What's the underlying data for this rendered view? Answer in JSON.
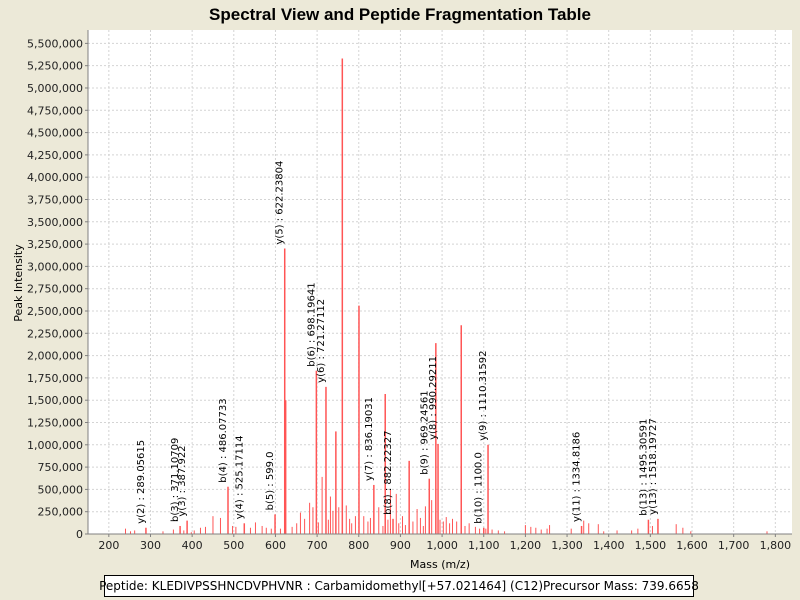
{
  "chart_data": {
    "type": "bar",
    "title": "Spectral View and Peptide Fragmentation Table",
    "xlabel": "Mass (m/z)",
    "ylabel": "Peak Intensity",
    "xlim": [
      150,
      1840
    ],
    "ylim": [
      0,
      5650000
    ],
    "x_ticks": [
      200,
      300,
      400,
      500,
      600,
      700,
      800,
      900,
      1000,
      1100,
      1200,
      1300,
      1400,
      1500,
      1600,
      1700,
      1800
    ],
    "x_tick_labels": [
      "200",
      "300",
      "400",
      "500",
      "600",
      "700",
      "800",
      "900",
      "1,000",
      "1,100",
      "1,200",
      "1,300",
      "1,400",
      "1,500",
      "1,600",
      "1,700",
      "1,800"
    ],
    "y_ticks": [
      0,
      250000,
      500000,
      750000,
      1000000,
      1250000,
      1500000,
      1750000,
      2000000,
      2250000,
      2500000,
      2750000,
      3000000,
      3250000,
      3500000,
      3750000,
      4000000,
      4250000,
      4500000,
      4750000,
      5000000,
      5250000,
      5500000
    ],
    "y_tick_labels": [
      "0",
      "250,000",
      "500,000",
      "750,000",
      "1,000,000",
      "1,250,000",
      "1,500,000",
      "1,750,000",
      "2,000,000",
      "2,250,000",
      "2,500,000",
      "2,750,000",
      "3,000,000",
      "3,250,000",
      "3,500,000",
      "3,750,000",
      "4,000,000",
      "4,250,000",
      "4,500,000",
      "4,750,000",
      "5,000,000",
      "5,250,000",
      "5,500,000"
    ],
    "grid": true,
    "bar_color": "#ff5555",
    "major_peaks": [
      {
        "mz": 289.05615,
        "intensity": 70000
      },
      {
        "mz": 371.10709,
        "intensity": 90000
      },
      {
        "mz": 387.922,
        "intensity": 150000
      },
      {
        "mz": 486.07733,
        "intensity": 530000
      },
      {
        "mz": 525.17114,
        "intensity": 120000
      },
      {
        "mz": 599.0,
        "intensity": 220000
      },
      {
        "mz": 622.23804,
        "intensity": 3200000
      },
      {
        "mz": 624.5,
        "intensity": 1500000
      },
      {
        "mz": 698.19641,
        "intensity": 1830000
      },
      {
        "mz": 721.27112,
        "intensity": 1650000
      },
      {
        "mz": 745,
        "intensity": 1150000
      },
      {
        "mz": 760.5,
        "intensity": 5330000
      },
      {
        "mz": 800.5,
        "intensity": 2560000
      },
      {
        "mz": 836.19031,
        "intensity": 550000
      },
      {
        "mz": 863.5,
        "intensity": 1570000
      },
      {
        "mz": 882.22327,
        "intensity": 170000
      },
      {
        "mz": 921,
        "intensity": 820000
      },
      {
        "mz": 969.24561,
        "intensity": 620000
      },
      {
        "mz": 985,
        "intensity": 2140000
      },
      {
        "mz": 990.29211,
        "intensity": 1010000
      },
      {
        "mz": 1046,
        "intensity": 2340000
      },
      {
        "mz": 1100.0,
        "intensity": 70000
      },
      {
        "mz": 1110.31592,
        "intensity": 1000000
      },
      {
        "mz": 1334.8186,
        "intensity": 90000
      },
      {
        "mz": 1495.30591,
        "intensity": 160000
      },
      {
        "mz": 1518.19727,
        "intensity": 170000
      }
    ],
    "minor_peaks": [
      [
        240,
        60000
      ],
      [
        252,
        30000
      ],
      [
        262,
        40000
      ],
      [
        330,
        30000
      ],
      [
        355,
        50000
      ],
      [
        380,
        40000
      ],
      [
        398,
        20000
      ],
      [
        405,
        40000
      ],
      [
        420,
        70000
      ],
      [
        432,
        80000
      ],
      [
        450,
        200000
      ],
      [
        468,
        180000
      ],
      [
        497,
        90000
      ],
      [
        505,
        80000
      ],
      [
        540,
        70000
      ],
      [
        552,
        130000
      ],
      [
        568,
        90000
      ],
      [
        578,
        70000
      ],
      [
        590,
        60000
      ],
      [
        612,
        60000
      ],
      [
        640,
        80000
      ],
      [
        651,
        120000
      ],
      [
        660,
        240000
      ],
      [
        670,
        170000
      ],
      [
        682,
        350000
      ],
      [
        690,
        300000
      ],
      [
        703,
        130000
      ],
      [
        712,
        640000
      ],
      [
        727,
        160000
      ],
      [
        732,
        420000
      ],
      [
        738,
        260000
      ],
      [
        752,
        300000
      ],
      [
        770,
        320000
      ],
      [
        778,
        170000
      ],
      [
        783,
        120000
      ],
      [
        792,
        200000
      ],
      [
        812,
        200000
      ],
      [
        822,
        140000
      ],
      [
        828,
        180000
      ],
      [
        848,
        300000
      ],
      [
        858,
        90000
      ],
      [
        870,
        160000
      ],
      [
        876,
        500000
      ],
      [
        890,
        450000
      ],
      [
        896,
        120000
      ],
      [
        905,
        200000
      ],
      [
        912,
        100000
      ],
      [
        930,
        140000
      ],
      [
        940,
        280000
      ],
      [
        948,
        180000
      ],
      [
        955,
        90000
      ],
      [
        960,
        310000
      ],
      [
        975,
        380000
      ],
      [
        995,
        160000
      ],
      [
        1003,
        140000
      ],
      [
        1010,
        190000
      ],
      [
        1018,
        120000
      ],
      [
        1025,
        170000
      ],
      [
        1035,
        140000
      ],
      [
        1055,
        90000
      ],
      [
        1065,
        120000
      ],
      [
        1080,
        80000
      ],
      [
        1090,
        60000
      ],
      [
        1105,
        60000
      ],
      [
        1120,
        50000
      ],
      [
        1135,
        40000
      ],
      [
        1150,
        30000
      ],
      [
        1200,
        100000
      ],
      [
        1213,
        80000
      ],
      [
        1225,
        70000
      ],
      [
        1238,
        50000
      ],
      [
        1252,
        60000
      ],
      [
        1258,
        100000
      ],
      [
        1310,
        60000
      ],
      [
        1340,
        150000
      ],
      [
        1352,
        120000
      ],
      [
        1375,
        110000
      ],
      [
        1388,
        30000
      ],
      [
        1420,
        40000
      ],
      [
        1455,
        40000
      ],
      [
        1470,
        60000
      ],
      [
        1505,
        90000
      ],
      [
        1562,
        110000
      ],
      [
        1578,
        70000
      ],
      [
        1597,
        30000
      ],
      [
        1780,
        30000
      ]
    ],
    "annotations": [
      {
        "mz": 289.05615,
        "label": "y(2) : 289.05615"
      },
      {
        "mz": 371.10709,
        "label": "b(3) : 371.10709"
      },
      {
        "mz": 387.922,
        "label": "y(3) : 387.922"
      },
      {
        "mz": 486.07733,
        "label": "b(4) : 486.07733"
      },
      {
        "mz": 525.17114,
        "label": "y(4) : 525.17114"
      },
      {
        "mz": 599.0,
        "label": "b(5) : 599.0"
      },
      {
        "mz": 622.23804,
        "label": "y(5) : 622.23804"
      },
      {
        "mz": 698.19641,
        "label": "b(6) : 698.19641"
      },
      {
        "mz": 721.27112,
        "label": "y(6) : 721.27112"
      },
      {
        "mz": 836.19031,
        "label": "y(7) : 836.19031"
      },
      {
        "mz": 882.22327,
        "label": "b(8) : 882.22327"
      },
      {
        "mz": 969.24561,
        "label": "b(9) : 969.24561"
      },
      {
        "mz": 990.29211,
        "label": "y(8) : 990.29211"
      },
      {
        "mz": 1100.0,
        "label": "b(10) : 1100.0"
      },
      {
        "mz": 1110.31592,
        "label": "y(9) : 1110.31592"
      },
      {
        "mz": 1334.8186,
        "label": "y(11) : 1334.8186"
      },
      {
        "mz": 1495.30591,
        "label": "b(13) : 1495.30591"
      },
      {
        "mz": 1518.19727,
        "label": "y(13) : 1518.19727"
      }
    ]
  },
  "footer": {
    "peptide": "Peptide: KLEDIVPSSHNCDVPHVNR : Carbamidomethyl[+57.021464] (C12)",
    "precursor": "Precursor Mass: 739.6658"
  }
}
